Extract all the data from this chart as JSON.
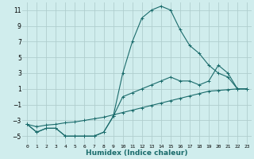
{
  "xlabel": "Humidex (Indice chaleur)",
  "bg_color": "#d0eded",
  "grid_color": "#b0cece",
  "line_color": "#1a6b6b",
  "line1_x": [
    0,
    1,
    2,
    3,
    4,
    5,
    6,
    7,
    8,
    9,
    10,
    11,
    12,
    13,
    14,
    15,
    16,
    17,
    18,
    19,
    20,
    21,
    22,
    23
  ],
  "line1_y": [
    -3.5,
    -4.5,
    -4.0,
    -4.0,
    -5.0,
    -5.0,
    -5.0,
    -5.0,
    -4.5,
    -2.5,
    3.0,
    7.0,
    10.0,
    11.0,
    11.5,
    11.0,
    8.5,
    6.5,
    5.5,
    4.0,
    3.0,
    2.5,
    1.0,
    1.0
  ],
  "line2_x": [
    0,
    1,
    2,
    3,
    4,
    5,
    6,
    7,
    8,
    9,
    10,
    11,
    12,
    13,
    14,
    15,
    16,
    17,
    18,
    19,
    20,
    21,
    22,
    23
  ],
  "line2_y": [
    -3.5,
    -4.5,
    -4.0,
    -4.0,
    -5.0,
    -5.0,
    -5.0,
    -5.0,
    -4.5,
    -2.5,
    0.0,
    0.5,
    1.0,
    1.5,
    2.0,
    2.5,
    2.0,
    2.0,
    1.5,
    2.0,
    4.0,
    3.0,
    1.0,
    1.0
  ],
  "line3_x": [
    0,
    1,
    2,
    3,
    4,
    5,
    6,
    7,
    8,
    9,
    10,
    11,
    12,
    13,
    14,
    15,
    16,
    17,
    18,
    19,
    20,
    21,
    22,
    23
  ],
  "line3_y": [
    -3.5,
    -3.8,
    -3.6,
    -3.5,
    -3.3,
    -3.2,
    -3.0,
    -2.8,
    -2.6,
    -2.3,
    -2.0,
    -1.7,
    -1.4,
    -1.1,
    -0.8,
    -0.5,
    -0.2,
    0.1,
    0.4,
    0.7,
    0.8,
    0.9,
    1.0,
    1.0
  ],
  "xlim": [
    -0.5,
    23.5
  ],
  "ylim": [
    -6,
    12
  ],
  "yticks": [
    -5,
    -3,
    -1,
    1,
    3,
    5,
    7,
    9,
    11
  ],
  "xticks": [
    0,
    1,
    2,
    3,
    4,
    5,
    6,
    7,
    8,
    9,
    10,
    11,
    12,
    13,
    14,
    15,
    16,
    17,
    18,
    19,
    20,
    21,
    22,
    23
  ]
}
